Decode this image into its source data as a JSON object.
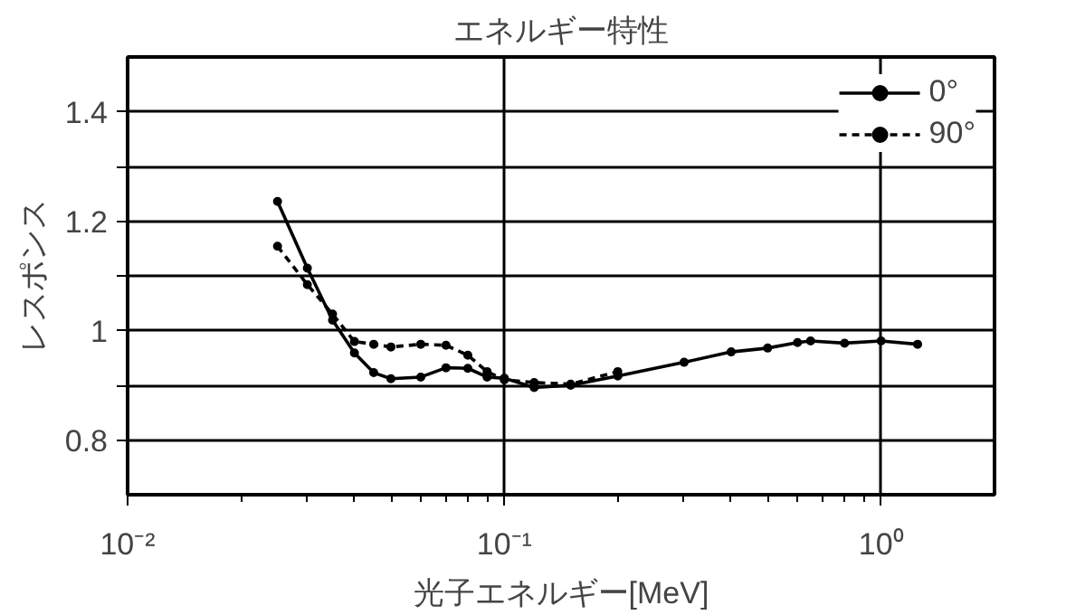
{
  "chart_data": {
    "type": "line",
    "title": "エネルギー特性",
    "xlabel": "光子エネルギー[MeV]",
    "ylabel": "レスポンス",
    "log": "x",
    "xlim": [
      0.01,
      2
    ],
    "xticks": [
      {
        "value": 0.01,
        "label": "10⁻²"
      },
      {
        "value": 0.1,
        "label": "10⁻¹"
      },
      {
        "value": 1,
        "label": "10⁰"
      }
    ],
    "ylim": [
      0.7,
      1.5
    ],
    "yticks": [
      0.8,
      {
        "value": 0.9,
        "label": null
      },
      1,
      {
        "value": 1.1,
        "label": null
      },
      1.2,
      {
        "value": 1.3,
        "label": null
      },
      1.4
    ],
    "grid": true,
    "legend": "top right",
    "marker": "circle",
    "series": [
      {
        "name": "0°",
        "color": "#000000",
        "line_style": "solid",
        "x": [
          0.025,
          0.03,
          0.035,
          0.04,
          0.045,
          0.05,
          0.06,
          0.07,
          0.08,
          0.09,
          0.1,
          0.12,
          0.15,
          0.2,
          0.3,
          0.4,
          0.5,
          0.6,
          0.65,
          0.8,
          1.0,
          1.25
        ],
        "values": [
          1.236,
          1.114,
          1.019,
          0.959,
          0.923,
          0.912,
          0.915,
          0.932,
          0.931,
          0.915,
          0.913,
          0.896,
          0.9,
          0.917,
          0.942,
          0.961,
          0.968,
          0.978,
          0.981,
          0.977,
          0.981,
          0.975
        ]
      },
      {
        "name": "90°",
        "color": "#000000",
        "line_style": "dashed",
        "x": [
          0.025,
          0.03,
          0.035,
          0.04,
          0.045,
          0.05,
          0.06,
          0.07,
          0.08,
          0.09,
          0.1,
          0.12,
          0.15,
          0.2
        ],
        "values": [
          1.154,
          1.084,
          1.03,
          0.98,
          0.975,
          0.97,
          0.975,
          0.973,
          0.955,
          0.925,
          0.91,
          0.905,
          0.902,
          0.925
        ]
      }
    ]
  }
}
